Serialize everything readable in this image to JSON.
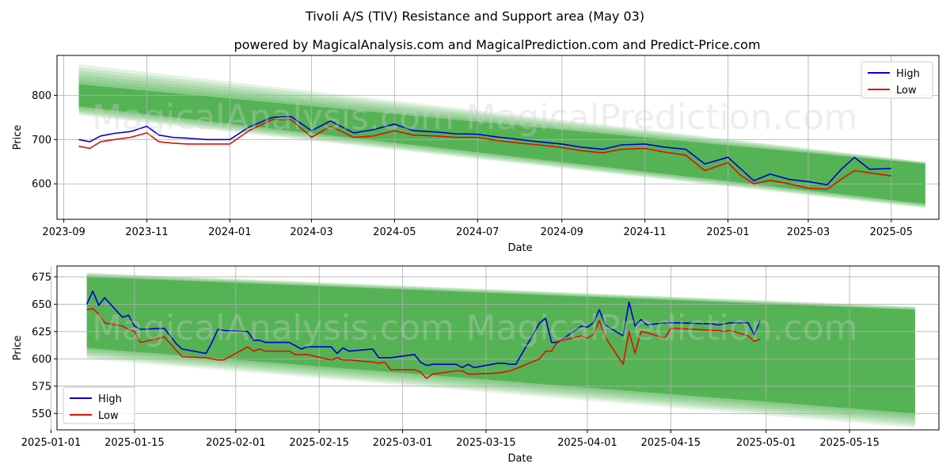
{
  "title": "Tivoli A/S (TIV) Resistance and Support area (May 03)",
  "subtitle": "powered by MagicalAnalysis.com and MagicalPrediction.com and Predict-Price.com",
  "watermarks": [
    "MagicalAnalysis.com",
    "MagicalPrediction.com"
  ],
  "colors": {
    "high": "#0000cc",
    "low": "#dd1100",
    "band": "#2ca02c",
    "grid": "#b0b0b0"
  },
  "chart_data": [
    {
      "type": "line",
      "xlabel": "Date",
      "ylabel": "Price",
      "xlim": [
        "2023-08-27",
        "2025-06-05"
      ],
      "ylim": [
        520,
        890
      ],
      "x_ticks": [
        "2023-09",
        "2023-11",
        "2024-01",
        "2024-03",
        "2024-05",
        "2024-07",
        "2024-09",
        "2024-11",
        "2025-01",
        "2025-03",
        "2025-05"
      ],
      "y_ticks": [
        600,
        700,
        800
      ],
      "grid": true,
      "legend": "top-right",
      "band": {
        "x": [
          "2023-09-12",
          "2025-05-26"
        ],
        "outer_upper": [
          870,
          650
        ],
        "outer_lower": [
          755,
          545
        ],
        "inner_upper": [
          825,
          645
        ],
        "inner_lower": [
          775,
          555
        ]
      },
      "series": [
        {
          "name": "High",
          "x": [
            "2023-09-12",
            "2023-09-20",
            "2023-09-28",
            "2023-10-08",
            "2023-10-20",
            "2023-11-01",
            "2023-11-10",
            "2023-11-20",
            "2023-12-01",
            "2023-12-15",
            "2024-01-01",
            "2024-01-15",
            "2024-02-01",
            "2024-02-15",
            "2024-03-01",
            "2024-03-15",
            "2024-04-01",
            "2024-04-15",
            "2024-05-01",
            "2024-05-15",
            "2024-06-01",
            "2024-06-15",
            "2024-07-01",
            "2024-07-15",
            "2024-08-01",
            "2024-08-15",
            "2024-09-01",
            "2024-09-15",
            "2024-10-01",
            "2024-10-15",
            "2024-11-01",
            "2024-11-15",
            "2024-12-01",
            "2024-12-15",
            "2025-01-01",
            "2025-01-10",
            "2025-01-20",
            "2025-02-01",
            "2025-02-15",
            "2025-03-01",
            "2025-03-15",
            "2025-03-25",
            "2025-04-04",
            "2025-04-15",
            "2025-05-01"
          ],
          "y": [
            700,
            695,
            708,
            714,
            718,
            730,
            710,
            705,
            703,
            700,
            700,
            728,
            750,
            752,
            720,
            742,
            715,
            722,
            735,
            720,
            717,
            713,
            712,
            706,
            700,
            695,
            690,
            683,
            678,
            688,
            690,
            683,
            678,
            645,
            660,
            635,
            607,
            622,
            610,
            605,
            598,
            632,
            660,
            633,
            635
          ]
        },
        {
          "name": "Low",
          "x": [
            "2023-09-12",
            "2023-09-20",
            "2023-09-28",
            "2023-10-08",
            "2023-10-20",
            "2023-11-01",
            "2023-11-10",
            "2023-11-20",
            "2023-12-01",
            "2023-12-15",
            "2024-01-01",
            "2024-01-15",
            "2024-02-01",
            "2024-02-15",
            "2024-03-01",
            "2024-03-15",
            "2024-04-01",
            "2024-04-15",
            "2024-05-01",
            "2024-05-15",
            "2024-06-01",
            "2024-06-15",
            "2024-07-01",
            "2024-07-15",
            "2024-08-01",
            "2024-08-15",
            "2024-09-01",
            "2024-09-15",
            "2024-10-01",
            "2024-10-15",
            "2024-11-01",
            "2024-11-15",
            "2024-12-01",
            "2024-12-15",
            "2025-01-01",
            "2025-01-10",
            "2025-01-20",
            "2025-02-01",
            "2025-02-15",
            "2025-03-01",
            "2025-03-15",
            "2025-03-25",
            "2025-04-04",
            "2025-04-15",
            "2025-05-01"
          ],
          "y": [
            685,
            680,
            695,
            700,
            705,
            715,
            695,
            692,
            690,
            690,
            690,
            720,
            745,
            745,
            705,
            730,
            705,
            708,
            720,
            710,
            708,
            705,
            705,
            698,
            692,
            688,
            682,
            675,
            670,
            678,
            680,
            672,
            665,
            630,
            648,
            620,
            600,
            608,
            600,
            590,
            588,
            610,
            630,
            625,
            618
          ]
        }
      ]
    },
    {
      "type": "line",
      "xlabel": "Date",
      "ylabel": "Price",
      "xlim": [
        "2025-01-02",
        "2025-05-30"
      ],
      "ylim": [
        535,
        685
      ],
      "x_ticks": [
        "2025-01-01",
        "2025-01-15",
        "2025-02-01",
        "2025-02-15",
        "2025-03-01",
        "2025-03-15",
        "2025-04-01",
        "2025-04-15",
        "2025-05-01",
        "2025-05-15"
      ],
      "y_ticks": [
        550,
        575,
        600,
        625,
        650,
        675
      ],
      "grid": true,
      "legend": "bottom-left",
      "band": {
        "x": [
          "2025-01-07",
          "2025-05-26"
        ],
        "outer_upper": [
          679,
          648
        ],
        "outer_lower": [
          600,
          537
        ],
        "inner_upper": [
          675,
          645
        ],
        "inner_lower": [
          610,
          550
        ]
      },
      "series": [
        {
          "name": "High",
          "x": [
            "2025-01-07",
            "2025-01-08",
            "2025-01-09",
            "2025-01-10",
            "2025-01-13",
            "2025-01-14",
            "2025-01-15",
            "2025-01-16",
            "2025-01-20",
            "2025-01-22",
            "2025-01-23",
            "2025-01-27",
            "2025-01-28",
            "2025-01-29",
            "2025-01-30",
            "2025-02-03",
            "2025-02-04",
            "2025-02-05",
            "2025-02-06",
            "2025-02-10",
            "2025-02-11",
            "2025-02-12",
            "2025-02-13",
            "2025-02-17",
            "2025-02-18",
            "2025-02-19",
            "2025-02-20",
            "2025-02-24",
            "2025-02-25",
            "2025-02-26",
            "2025-02-27",
            "2025-03-03",
            "2025-03-04",
            "2025-03-05",
            "2025-03-06",
            "2025-03-10",
            "2025-03-11",
            "2025-03-12",
            "2025-03-13",
            "2025-03-17",
            "2025-03-18",
            "2025-03-19",
            "2025-03-20",
            "2025-03-24",
            "2025-03-25",
            "2025-03-26",
            "2025-03-27",
            "2025-03-31",
            "2025-04-01",
            "2025-04-02",
            "2025-04-03",
            "2025-04-04",
            "2025-04-07",
            "2025-04-08",
            "2025-04-09",
            "2025-04-10",
            "2025-04-11",
            "2025-04-14",
            "2025-04-15",
            "2025-04-16",
            "2025-04-22",
            "2025-04-23",
            "2025-04-24",
            "2025-04-25",
            "2025-04-28",
            "2025-04-29",
            "2025-04-30"
          ],
          "y": [
            650,
            662,
            649,
            656,
            638,
            640,
            630,
            627,
            628,
            614,
            609,
            605,
            615,
            627,
            626,
            625,
            617,
            617,
            615,
            615,
            612,
            609,
            611,
            611,
            605,
            610,
            607,
            609,
            601,
            601,
            601,
            604,
            597,
            594,
            595,
            595,
            592,
            595,
            592,
            596,
            596,
            595,
            595,
            633,
            637,
            615,
            615,
            630,
            629,
            633,
            645,
            631,
            621,
            652,
            630,
            636,
            631,
            633,
            633,
            633,
            632,
            631,
            632,
            633,
            633,
            622,
            635
          ]
        },
        {
          "name": "Low",
          "x": [
            "2025-01-07",
            "2025-01-08",
            "2025-01-09",
            "2025-01-10",
            "2025-01-13",
            "2025-01-14",
            "2025-01-15",
            "2025-01-16",
            "2025-01-20",
            "2025-01-22",
            "2025-01-23",
            "2025-01-27",
            "2025-01-28",
            "2025-01-29",
            "2025-01-30",
            "2025-02-03",
            "2025-02-04",
            "2025-02-05",
            "2025-02-06",
            "2025-02-10",
            "2025-02-11",
            "2025-02-12",
            "2025-02-13",
            "2025-02-17",
            "2025-02-18",
            "2025-02-19",
            "2025-02-20",
            "2025-02-24",
            "2025-02-25",
            "2025-02-26",
            "2025-02-27",
            "2025-03-03",
            "2025-03-04",
            "2025-03-05",
            "2025-03-06",
            "2025-03-10",
            "2025-03-11",
            "2025-03-12",
            "2025-03-13",
            "2025-03-17",
            "2025-03-18",
            "2025-03-19",
            "2025-03-20",
            "2025-03-24",
            "2025-03-25",
            "2025-03-26",
            "2025-03-27",
            "2025-03-31",
            "2025-04-01",
            "2025-04-02",
            "2025-04-03",
            "2025-04-04",
            "2025-04-07",
            "2025-04-08",
            "2025-04-09",
            "2025-04-10",
            "2025-04-11",
            "2025-04-14",
            "2025-04-15",
            "2025-04-16",
            "2025-04-22",
            "2025-04-23",
            "2025-04-24",
            "2025-04-25",
            "2025-04-28",
            "2025-04-29",
            "2025-04-30"
          ],
          "y": [
            645,
            646,
            641,
            633,
            630,
            627,
            625,
            615,
            620,
            608,
            602,
            601,
            600,
            599,
            599,
            611,
            607,
            609,
            607,
            607,
            604,
            604,
            604,
            599,
            601,
            599,
            599,
            597,
            596,
            597,
            590,
            590,
            588,
            582,
            586,
            589,
            589,
            586,
            586,
            587,
            588,
            589,
            591,
            600,
            607,
            607,
            616,
            621,
            619,
            622,
            635,
            620,
            595,
            625,
            605,
            625,
            624,
            619,
            628,
            628,
            626,
            626,
            625,
            626,
            621,
            616,
            618
          ]
        }
      ]
    }
  ]
}
